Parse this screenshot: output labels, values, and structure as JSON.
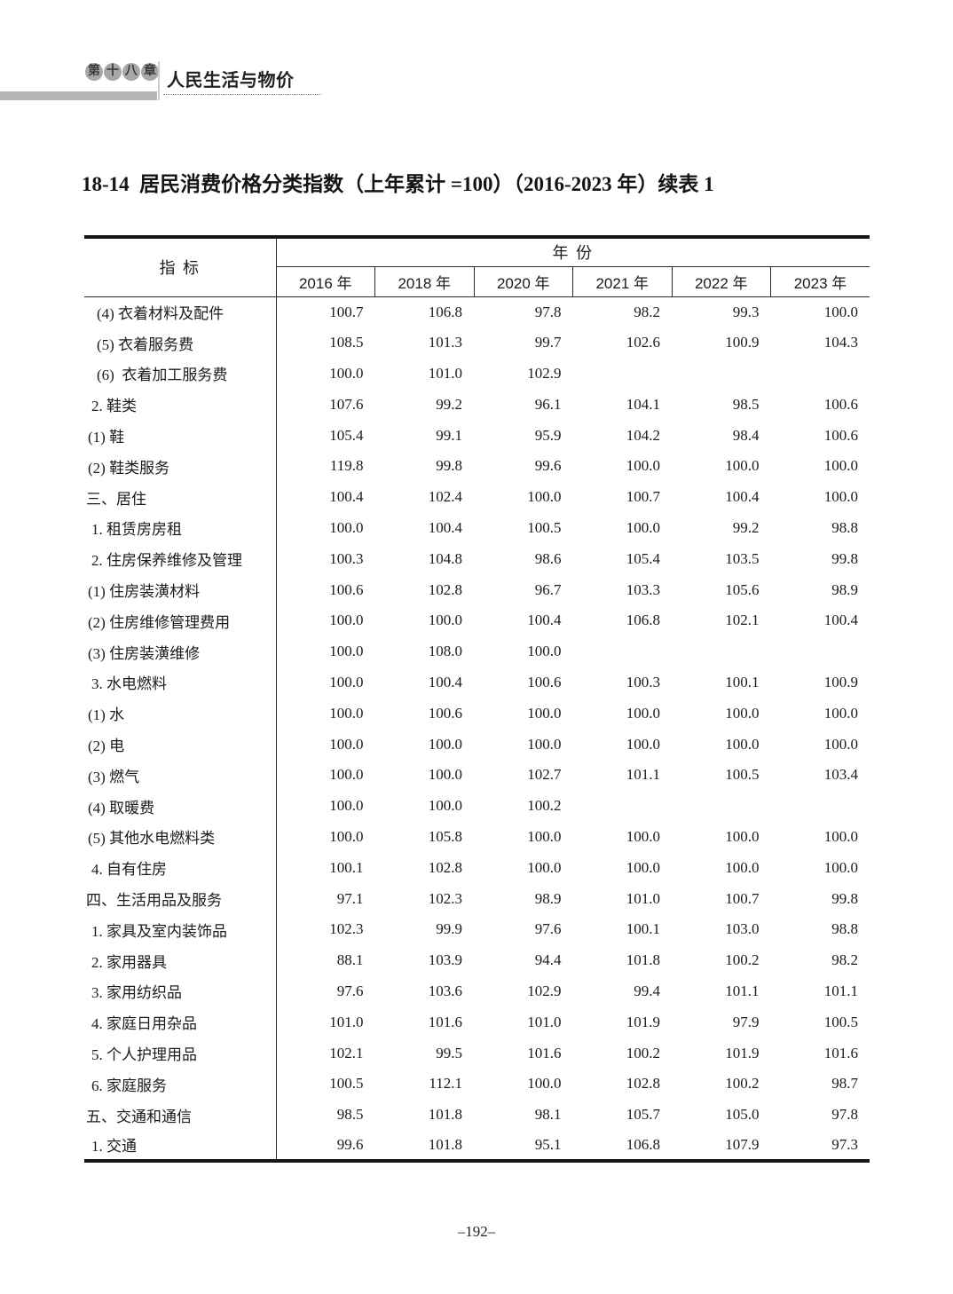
{
  "header": {
    "chapter_badge": [
      "第",
      "十",
      "八",
      "章"
    ],
    "chapter_title": "人民生活与物价",
    "table_title": "18-14  居民消费价格分类指数（上年累计 =100）（2016-2023 年）续表 1"
  },
  "table": {
    "indicator_header": "指 标",
    "year_group_header": "年 份",
    "year_columns": [
      "2016 年",
      "2018 年",
      "2020 年",
      "2021 年",
      "2022 年",
      "2023 年"
    ],
    "rows": [
      {
        "label": "(4) 衣着材料及配件",
        "indent": 3,
        "values": [
          "100.7",
          "106.8",
          "97.8",
          "98.2",
          "99.3",
          "100.0"
        ]
      },
      {
        "label": "(5) 衣着服务费",
        "indent": 3,
        "values": [
          "108.5",
          "101.3",
          "99.7",
          "102.6",
          "100.9",
          "104.3"
        ]
      },
      {
        "label": "(6)  衣着加工服务费",
        "indent": 3,
        "values": [
          "100.0",
          "101.0",
          "102.9",
          "",
          "",
          ""
        ]
      },
      {
        "label": "2. 鞋类",
        "indent": 2,
        "values": [
          "107.6",
          "99.2",
          "96.1",
          "104.1",
          "98.5",
          "100.6"
        ]
      },
      {
        "label": "(1) 鞋",
        "indent": 1,
        "values": [
          "105.4",
          "99.1",
          "95.9",
          "104.2",
          "98.4",
          "100.6"
        ]
      },
      {
        "label": "(2) 鞋类服务",
        "indent": 1,
        "values": [
          "119.8",
          "99.8",
          "99.6",
          "100.0",
          "100.0",
          "100.0"
        ]
      },
      {
        "label": "三、居住",
        "indent": 0,
        "values": [
          "100.4",
          "102.4",
          "100.0",
          "100.7",
          "100.4",
          "100.0"
        ]
      },
      {
        "label": "1. 租赁房房租",
        "indent": 2,
        "values": [
          "100.0",
          "100.4",
          "100.5",
          "100.0",
          "99.2",
          "98.8"
        ]
      },
      {
        "label": "2. 住房保养维修及管理",
        "indent": 2,
        "values": [
          "100.3",
          "104.8",
          "98.6",
          "105.4",
          "103.5",
          "99.8"
        ]
      },
      {
        "label": "(1) 住房装潢材料",
        "indent": 1,
        "values": [
          "100.6",
          "102.8",
          "96.7",
          "103.3",
          "105.6",
          "98.9"
        ]
      },
      {
        "label": "(2) 住房维修管理费用",
        "indent": 1,
        "values": [
          "100.0",
          "100.0",
          "100.4",
          "106.8",
          "102.1",
          "100.4"
        ]
      },
      {
        "label": "(3) 住房装潢维修",
        "indent": 1,
        "values": [
          "100.0",
          "108.0",
          "100.0",
          "",
          "",
          ""
        ]
      },
      {
        "label": "3. 水电燃料",
        "indent": 2,
        "values": [
          "100.0",
          "100.4",
          "100.6",
          "100.3",
          "100.1",
          "100.9"
        ]
      },
      {
        "label": "(1) 水",
        "indent": 1,
        "values": [
          "100.0",
          "100.6",
          "100.0",
          "100.0",
          "100.0",
          "100.0"
        ]
      },
      {
        "label": "(2) 电",
        "indent": 1,
        "values": [
          "100.0",
          "100.0",
          "100.0",
          "100.0",
          "100.0",
          "100.0"
        ]
      },
      {
        "label": "(3) 燃气",
        "indent": 1,
        "values": [
          "100.0",
          "100.0",
          "102.7",
          "101.1",
          "100.5",
          "103.4"
        ]
      },
      {
        "label": "(4) 取暖费",
        "indent": 1,
        "values": [
          "100.0",
          "100.0",
          "100.2",
          "",
          "",
          ""
        ]
      },
      {
        "label": "(5) 其他水电燃料类",
        "indent": 1,
        "values": [
          "100.0",
          "105.8",
          "100.0",
          "100.0",
          "100.0",
          "100.0"
        ]
      },
      {
        "label": "4. 自有住房",
        "indent": 2,
        "values": [
          "100.1",
          "102.8",
          "100.0",
          "100.0",
          "100.0",
          "100.0"
        ]
      },
      {
        "label": "四、生活用品及服务",
        "indent": 0,
        "values": [
          "97.1",
          "102.3",
          "98.9",
          "101.0",
          "100.7",
          "99.8"
        ]
      },
      {
        "label": "1. 家具及室内装饰品",
        "indent": 2,
        "values": [
          "102.3",
          "99.9",
          "97.6",
          "100.1",
          "103.0",
          "98.8"
        ]
      },
      {
        "label": "2. 家用器具",
        "indent": 2,
        "values": [
          "88.1",
          "103.9",
          "94.4",
          "101.8",
          "100.2",
          "98.2"
        ]
      },
      {
        "label": "3. 家用纺织品",
        "indent": 2,
        "values": [
          "97.6",
          "103.6",
          "102.9",
          "99.4",
          "101.1",
          "101.1"
        ]
      },
      {
        "label": "4. 家庭日用杂品",
        "indent": 2,
        "values": [
          "101.0",
          "101.6",
          "101.0",
          "101.9",
          "97.9",
          "100.5"
        ]
      },
      {
        "label": "5. 个人护理用品",
        "indent": 2,
        "values": [
          "102.1",
          "99.5",
          "101.6",
          "100.2",
          "101.9",
          "101.6"
        ]
      },
      {
        "label": "6. 家庭服务",
        "indent": 2,
        "values": [
          "100.5",
          "112.1",
          "100.0",
          "102.8",
          "100.2",
          "98.7"
        ]
      },
      {
        "label": "五、交通和通信",
        "indent": 0,
        "values": [
          "98.5",
          "101.8",
          "98.1",
          "105.7",
          "105.0",
          "97.8"
        ]
      },
      {
        "label": "1. 交通",
        "indent": 2,
        "values": [
          "99.6",
          "101.8",
          "95.1",
          "106.8",
          "107.9",
          "97.3"
        ]
      }
    ]
  },
  "footer": {
    "page_number": "–192–"
  }
}
